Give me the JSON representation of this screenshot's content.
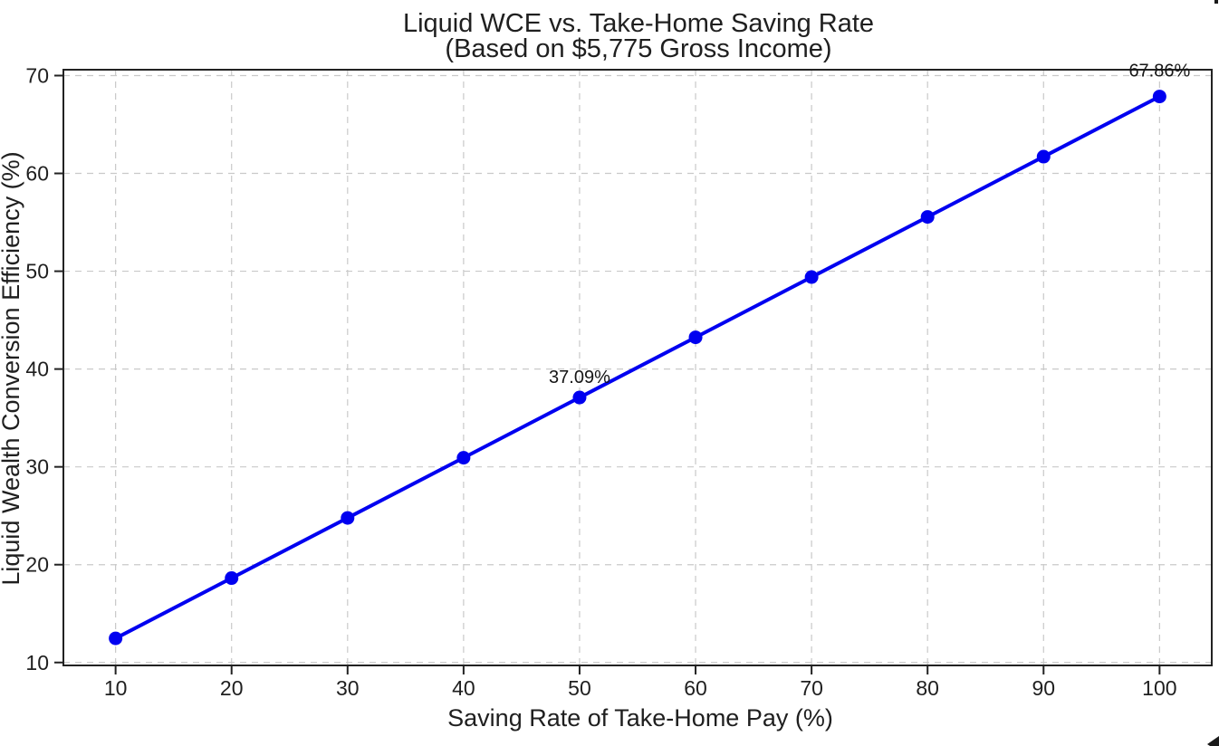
{
  "chart_data": {
    "type": "line",
    "title": "Liquid WCE vs. Take-Home Saving Rate",
    "subtitle": "(Based on $5,775 Gross Income)",
    "xlabel": "Saving Rate of Take-Home Pay (%)",
    "ylabel": "Liquid Wealth Conversion Efficiency (%)",
    "xlim": [
      5.5,
      104.5
    ],
    "ylim": [
      9.7,
      70.6
    ],
    "xticks": [
      10,
      20,
      30,
      40,
      50,
      60,
      70,
      80,
      90,
      100
    ],
    "yticks": [
      10,
      20,
      30,
      40,
      50,
      60,
      70
    ],
    "grid": true,
    "legend": "none",
    "series": [
      {
        "name": "Liquid WCE",
        "x": [
          10,
          20,
          30,
          40,
          50,
          60,
          70,
          80,
          90,
          100
        ],
        "y": [
          12.47,
          18.63,
          24.78,
          30.93,
          37.09,
          43.24,
          49.4,
          55.55,
          61.71,
          67.86
        ],
        "color": "#0000f0",
        "marker": "circle",
        "line_width": 4,
        "marker_radius": 7.5
      }
    ],
    "annotations": [
      {
        "label": "37.09%",
        "x": 50,
        "y": 37.09,
        "dy": -16
      },
      {
        "label": "67.86%",
        "x": 100,
        "y": 67.86,
        "dy": -22
      }
    ],
    "colors": {
      "line": "#0000f0",
      "grid": "#c9c9c9",
      "spine": "#222222",
      "text": "#1f1f1f"
    }
  }
}
